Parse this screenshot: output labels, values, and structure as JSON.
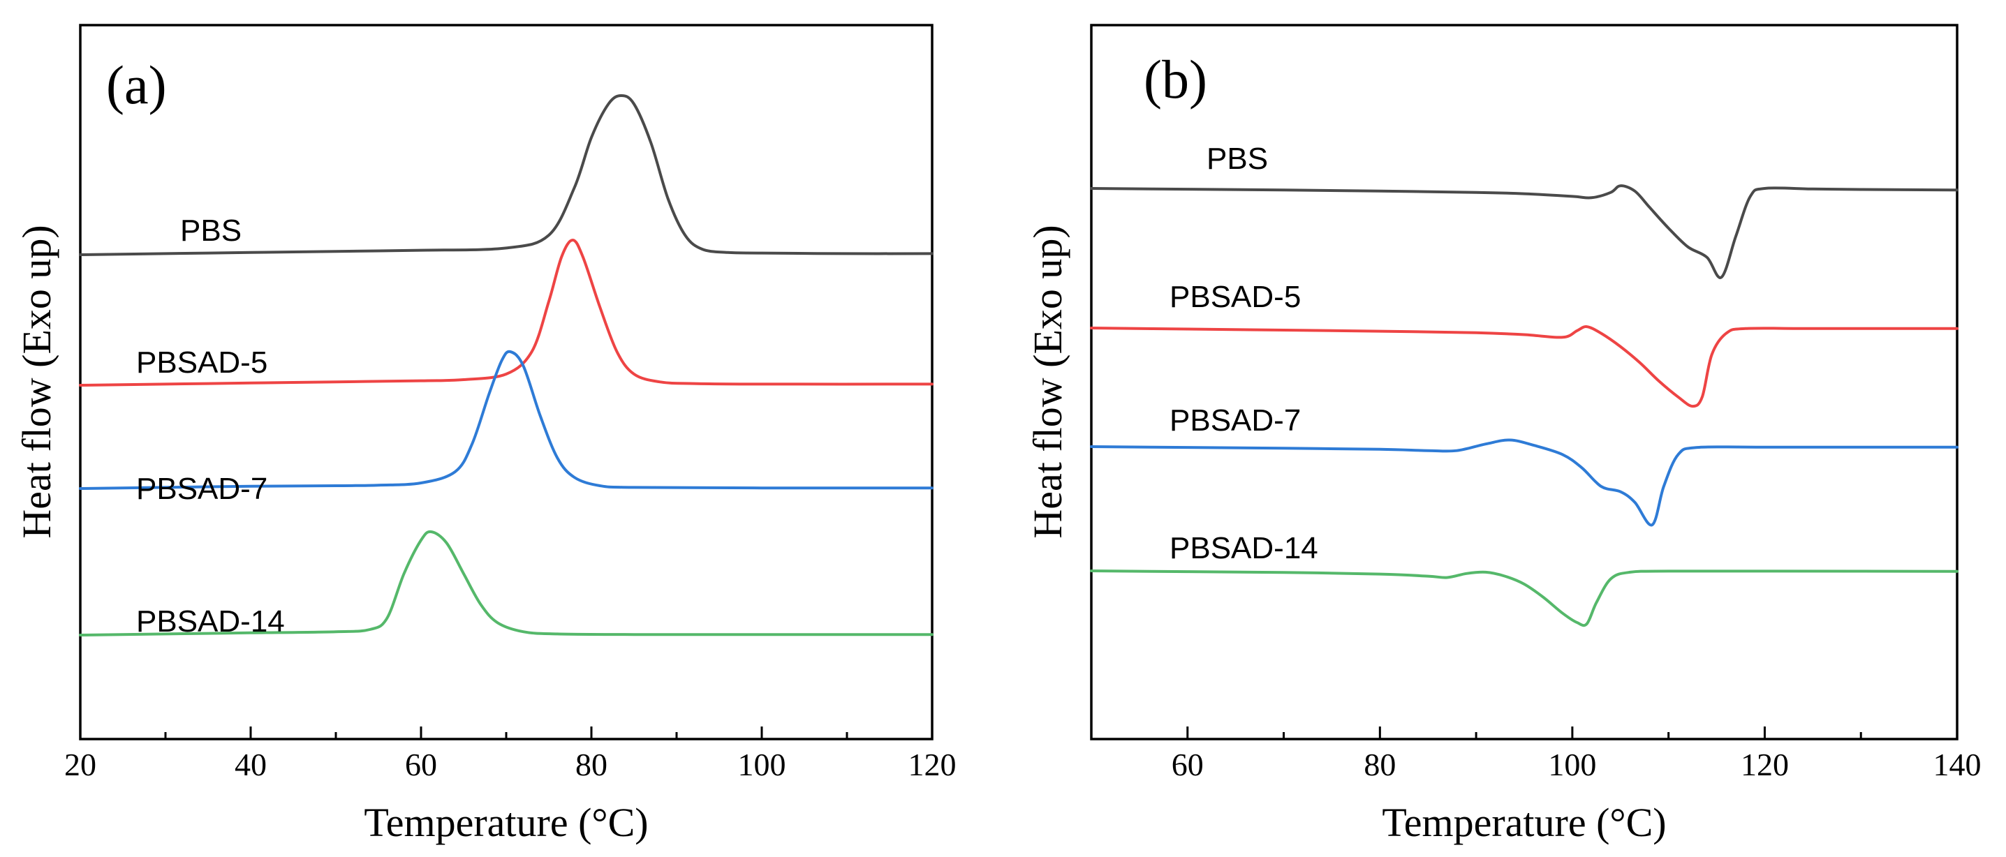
{
  "chart_data": [
    {
      "type": "line",
      "panel_label": "(a)",
      "xlabel": "Temperature (°C)",
      "ylabel": "Heat flow (Exo up)",
      "xlim": [
        20,
        120
      ],
      "x_ticks": [
        20,
        40,
        60,
        80,
        100,
        120
      ],
      "y_ticks_shown": false,
      "series": [
        {
          "name": "PBS",
          "color": "#4a4a4a",
          "baseline_level": 3,
          "peak_type": "exo",
          "points": [
            [
              20,
              0
            ],
            [
              30,
              0.02
            ],
            [
              40,
              0.04
            ],
            [
              50,
              0.06
            ],
            [
              60,
              0.08
            ],
            [
              70,
              0.12
            ],
            [
              75,
              0.35
            ],
            [
              78,
              1.2
            ],
            [
              80,
              2.1
            ],
            [
              82,
              2.7
            ],
            [
              83.5,
              2.85
            ],
            [
              85,
              2.7
            ],
            [
              87,
              2.0
            ],
            [
              89,
              1.0
            ],
            [
              91,
              0.35
            ],
            [
              93,
              0.1
            ],
            [
              96,
              0.04
            ],
            [
              100,
              0.03
            ],
            [
              110,
              0.02
            ],
            [
              120,
              0.02
            ]
          ]
        },
        {
          "name": "PBSAD-5",
          "color": "#ee4444",
          "baseline_level": 2,
          "peak_type": "exo",
          "points": [
            [
              20,
              0
            ],
            [
              30,
              0.02
            ],
            [
              40,
              0.04
            ],
            [
              50,
              0.06
            ],
            [
              60,
              0.08
            ],
            [
              65,
              0.1
            ],
            [
              70,
              0.2
            ],
            [
              73,
              0.6
            ],
            [
              75,
              1.5
            ],
            [
              76.5,
              2.3
            ],
            [
              77.8,
              2.6
            ],
            [
              79,
              2.3
            ],
            [
              81,
              1.4
            ],
            [
              83,
              0.6
            ],
            [
              85,
              0.2
            ],
            [
              88,
              0.06
            ],
            [
              92,
              0.03
            ],
            [
              100,
              0.02
            ],
            [
              120,
              0.02
            ]
          ]
        },
        {
          "name": "PBSAD-7",
          "color": "#2e7bd6",
          "baseline_level": 1,
          "peak_type": "exo",
          "points": [
            [
              20,
              0
            ],
            [
              30,
              0.02
            ],
            [
              40,
              0.04
            ],
            [
              50,
              0.05
            ],
            [
              55,
              0.06
            ],
            [
              60,
              0.1
            ],
            [
              64,
              0.3
            ],
            [
              66,
              0.8
            ],
            [
              68,
              1.7
            ],
            [
              69.5,
              2.3
            ],
            [
              70.5,
              2.45
            ],
            [
              72,
              2.2
            ],
            [
              74,
              1.3
            ],
            [
              76,
              0.55
            ],
            [
              78,
              0.2
            ],
            [
              81,
              0.05
            ],
            [
              85,
              0.02
            ],
            [
              100,
              0.01
            ],
            [
              120,
              0.01
            ]
          ]
        },
        {
          "name": "PBSAD-14",
          "color": "#55b86a",
          "baseline_level": 0,
          "peak_type": "exo",
          "points": [
            [
              20,
              0
            ],
            [
              30,
              0.02
            ],
            [
              40,
              0.04
            ],
            [
              50,
              0.06
            ],
            [
              54,
              0.1
            ],
            [
              56,
              0.3
            ],
            [
              58,
              1.1
            ],
            [
              60,
              1.7
            ],
            [
              61.2,
              1.85
            ],
            [
              63,
              1.65
            ],
            [
              65,
              1.1
            ],
            [
              67,
              0.55
            ],
            [
              69,
              0.22
            ],
            [
              72,
              0.06
            ],
            [
              76,
              0.02
            ],
            [
              85,
              0.01
            ],
            [
              100,
              0.01
            ],
            [
              120,
              0.01
            ]
          ]
        }
      ],
      "series_labels": [
        "PBS",
        "PBSAD-5",
        "PBSAD-7",
        "PBSAD-14"
      ]
    },
    {
      "type": "line",
      "panel_label": "(b)",
      "xlabel": "Temperature  (°C)",
      "ylabel": "Heat flow (Exo up)",
      "xlim": [
        50,
        140
      ],
      "x_ticks": [
        60,
        80,
        100,
        120,
        140
      ],
      "y_ticks_shown": false,
      "series": [
        {
          "name": "PBS",
          "color": "#4a4a4a",
          "baseline_level": 3,
          "peak_type": "endo",
          "points": [
            [
              50,
              0
            ],
            [
              60,
              -0.03
            ],
            [
              70,
              -0.06
            ],
            [
              80,
              -0.1
            ],
            [
              90,
              -0.15
            ],
            [
              95,
              -0.2
            ],
            [
              100,
              -0.3
            ],
            [
              102,
              -0.35
            ],
            [
              104,
              -0.15
            ],
            [
              105,
              0.1
            ],
            [
              106.5,
              -0.1
            ],
            [
              108,
              -0.7
            ],
            [
              110,
              -1.5
            ],
            [
              112,
              -2.2
            ],
            [
              114,
              -2.6
            ],
            [
              115.5,
              -3.35
            ],
            [
              117,
              -1.8
            ],
            [
              118.5,
              -0.3
            ],
            [
              120,
              0
            ],
            [
              125,
              -0.02
            ],
            [
              130,
              -0.04
            ],
            [
              140,
              -0.06
            ]
          ]
        },
        {
          "name": "PBSAD-5",
          "color": "#ee4444",
          "baseline_level": 2,
          "peak_type": "endo",
          "points": [
            [
              50,
              0
            ],
            [
              60,
              -0.04
            ],
            [
              70,
              -0.08
            ],
            [
              80,
              -0.12
            ],
            [
              90,
              -0.18
            ],
            [
              95,
              -0.25
            ],
            [
              99,
              -0.35
            ],
            [
              100.5,
              -0.1
            ],
            [
              101.5,
              0.05
            ],
            [
              103,
              -0.2
            ],
            [
              105,
              -0.7
            ],
            [
              107,
              -1.3
            ],
            [
              109,
              -2.0
            ],
            [
              111,
              -2.6
            ],
            [
              112.5,
              -2.95
            ],
            [
              113.5,
              -2.6
            ],
            [
              114.5,
              -1.0
            ],
            [
              116,
              -0.2
            ],
            [
              118,
              -0.02
            ],
            [
              125,
              -0.02
            ],
            [
              140,
              -0.02
            ]
          ]
        },
        {
          "name": "PBSAD-7",
          "color": "#2e7bd6",
          "baseline_level": 1,
          "peak_type": "endo",
          "points": [
            [
              50,
              0
            ],
            [
              60,
              -0.03
            ],
            [
              70,
              -0.06
            ],
            [
              80,
              -0.1
            ],
            [
              85,
              -0.15
            ],
            [
              88,
              -0.15
            ],
            [
              91,
              0.1
            ],
            [
              93.5,
              0.25
            ],
            [
              96,
              0.05
            ],
            [
              99,
              -0.3
            ],
            [
              101,
              -0.8
            ],
            [
              103,
              -1.5
            ],
            [
              105,
              -1.7
            ],
            [
              106.5,
              -2.1
            ],
            [
              108.3,
              -2.95
            ],
            [
              109.5,
              -1.5
            ],
            [
              111,
              -0.3
            ],
            [
              113,
              -0.03
            ],
            [
              120,
              -0.02
            ],
            [
              140,
              -0.02
            ]
          ]
        },
        {
          "name": "PBSAD-14",
          "color": "#55b86a",
          "baseline_level": 0,
          "peak_type": "endo",
          "points": [
            [
              50,
              0
            ],
            [
              60,
              -0.03
            ],
            [
              70,
              -0.06
            ],
            [
              80,
              -0.12
            ],
            [
              85,
              -0.2
            ],
            [
              87,
              -0.25
            ],
            [
              89,
              -0.1
            ],
            [
              91,
              -0.05
            ],
            [
              93,
              -0.2
            ],
            [
              95,
              -0.5
            ],
            [
              97,
              -1.0
            ],
            [
              99,
              -1.6
            ],
            [
              100.5,
              -1.95
            ],
            [
              101.5,
              -2.0
            ],
            [
              102.5,
              -1.2
            ],
            [
              104,
              -0.3
            ],
            [
              106,
              -0.05
            ],
            [
              110,
              -0.01
            ],
            [
              120,
              -0.01
            ],
            [
              140,
              -0.02
            ]
          ]
        }
      ],
      "series_labels": [
        "PBS",
        "PBSAD-5",
        "PBSAD-7",
        "PBSAD-14"
      ]
    }
  ]
}
